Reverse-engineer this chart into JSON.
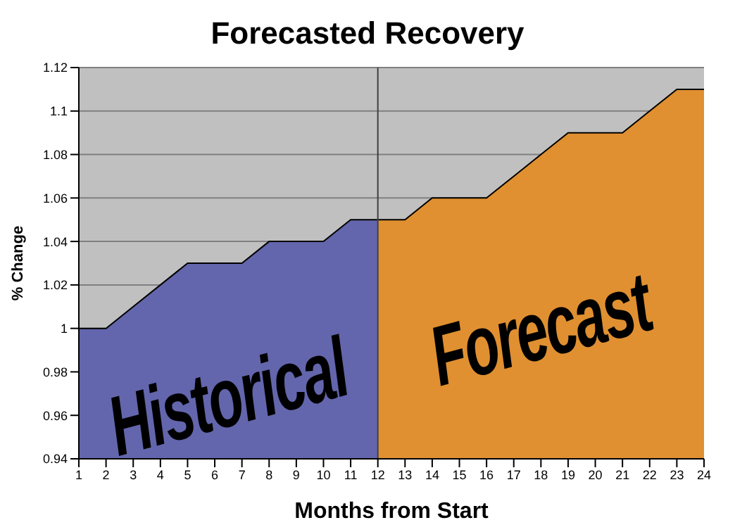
{
  "chart_data": {
    "type": "area",
    "title": "Forecasted Recovery",
    "xlabel": "Months from Start",
    "ylabel": "% Change",
    "xlim": [
      1,
      24
    ],
    "xticks": [
      1,
      2,
      3,
      4,
      5,
      6,
      7,
      8,
      9,
      10,
      11,
      12,
      13,
      14,
      15,
      16,
      17,
      18,
      19,
      20,
      21,
      22,
      23,
      24
    ],
    "ylim": [
      0.94,
      1.12
    ],
    "yticks": [
      0.94,
      0.96,
      0.98,
      1,
      1.02,
      1.04,
      1.06,
      1.08,
      1.1,
      1.12
    ],
    "grid": "y",
    "legend": false,
    "marker": "none",
    "ref_lines": [
      {
        "axis": "x",
        "value": 12,
        "color": "#404040"
      }
    ],
    "series": [
      {
        "name": "Historical",
        "color": "#6366ac",
        "x": [
          1,
          2,
          3,
          4,
          5,
          6,
          7,
          8,
          9,
          10,
          11,
          12
        ],
        "values": [
          1,
          1,
          1.01,
          1.02,
          1.03,
          1.03,
          1.03,
          1.04,
          1.04,
          1.04,
          1.05,
          1.05
        ]
      },
      {
        "name": "Forecast",
        "color": "#e09030",
        "x": [
          12,
          13,
          14,
          15,
          16,
          17,
          18,
          19,
          20,
          21,
          22,
          23,
          24
        ],
        "values": [
          1.05,
          1.05,
          1.06,
          1.06,
          1.06,
          1.07,
          1.08,
          1.09,
          1.09,
          1.09,
          1.1,
          1.11,
          1.11
        ]
      }
    ]
  }
}
